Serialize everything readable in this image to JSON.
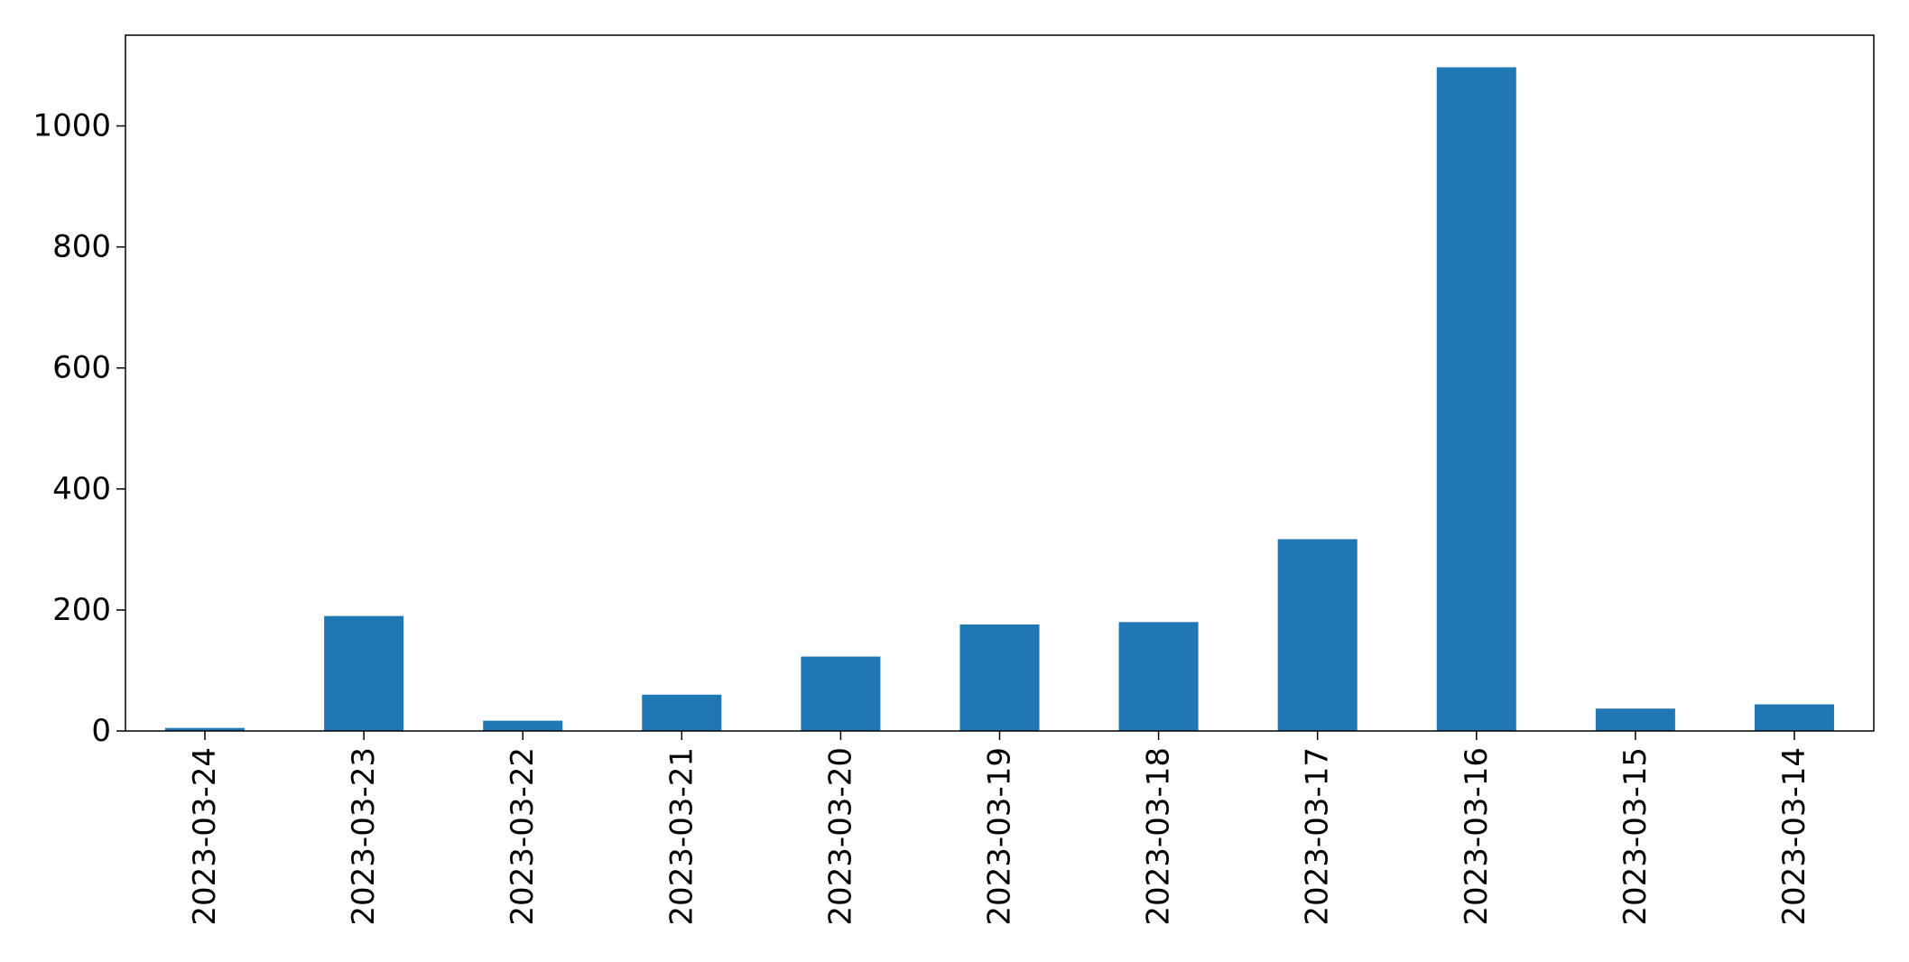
{
  "chart_data": {
    "type": "bar",
    "title": "",
    "xlabel": "",
    "ylabel": "",
    "categories": [
      "2023-03-24",
      "2023-03-23",
      "2023-03-22",
      "2023-03-21",
      "2023-03-20",
      "2023-03-19",
      "2023-03-18",
      "2023-03-17",
      "2023-03-16",
      "2023-03-15",
      "2023-03-14"
    ],
    "values": [
      5,
      190,
      17,
      60,
      123,
      176,
      180,
      317,
      1097,
      37,
      44
    ],
    "ylim": [
      0,
      1150
    ],
    "yticks": [
      0,
      200,
      400,
      600,
      800,
      1000
    ],
    "grid": false,
    "legend": "none",
    "bar_color": "#1f77b4",
    "axis_color": "#000000"
  }
}
